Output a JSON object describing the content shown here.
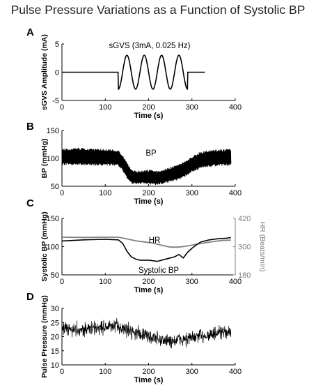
{
  "figure_title": "Pulse Pressure Variations as a Function of Systolic BP",
  "chart_data": [
    {
      "panel": "A",
      "type": "line",
      "title": "",
      "annotation": "sGVS (3mA, 0.025 Hz)",
      "xlabel": "Time (s)",
      "ylabel": "sGVS Amplitude (mA)",
      "xlim": [
        0,
        400
      ],
      "ylim": [
        -5,
        5
      ],
      "xticks": [
        "0",
        "100",
        "200",
        "300",
        "400"
      ],
      "yticks": [
        "-5",
        "0",
        "5"
      ],
      "series": [
        {
          "color": "#000000",
          "x": [
            0,
            130,
            130,
            140,
            150,
            160,
            170,
            180,
            190,
            200,
            210,
            220,
            230,
            240,
            250,
            260,
            270,
            280,
            290,
            290,
            330
          ],
          "values": [
            0,
            0,
            -3,
            -2.1,
            0,
            2.1,
            3,
            2.1,
            0,
            -2.1,
            -3,
            -2.1,
            0,
            2.1,
            3,
            2.1,
            0,
            -2.1,
            -3,
            0,
            0
          ]
        }
      ]
    },
    {
      "panel": "B",
      "type": "area",
      "title": "",
      "annotation": "BP",
      "xlabel": "Time (s)",
      "ylabel": "BP (mmHg)",
      "xlim": [
        0,
        400
      ],
      "ylim": [
        50,
        150
      ],
      "xticks": [
        "0",
        "100",
        "200",
        "300",
        "400"
      ],
      "yticks": [
        "50",
        "100",
        "150"
      ],
      "series": [
        {
          "name": "BP",
          "color": "#000000",
          "x": [
            0,
            40,
            80,
            120,
            130,
            140,
            150,
            160,
            170,
            180,
            200,
            220,
            240,
            260,
            280,
            300,
            320,
            340,
            360,
            380,
            390
          ],
          "upper": [
            115,
            117,
            116,
            114,
            113,
            105,
            90,
            80,
            76,
            76,
            78,
            76,
            80,
            86,
            92,
            102,
            110,
            113,
            114,
            115,
            116
          ],
          "lower": [
            90,
            90,
            89,
            89,
            88,
            80,
            66,
            57,
            55,
            56,
            55,
            54,
            58,
            61,
            67,
            77,
            84,
            87,
            88,
            89,
            89
          ]
        }
      ]
    },
    {
      "panel": "C",
      "type": "line",
      "title": "",
      "xlabel": "Time (s)",
      "ylabel": "Systolic BP (mmHg)",
      "y2label": "HR (Beats/min)",
      "xlim": [
        0,
        400
      ],
      "ylim": [
        50,
        150
      ],
      "y2lim": [
        180,
        420
      ],
      "xticks": [
        "0",
        "100",
        "200",
        "300",
        "400"
      ],
      "yticks": [
        "50",
        "100",
        "150"
      ],
      "y2ticks": [
        "180",
        "300",
        "420"
      ],
      "series": [
        {
          "name": "HR",
          "axis": "right",
          "color": "#808080",
          "x": [
            0,
            50,
            100,
            130,
            150,
            170,
            190,
            210,
            230,
            250,
            270,
            290,
            310,
            330,
            350,
            370,
            390
          ],
          "values": [
            340,
            339,
            340,
            340,
            333,
            325,
            320,
            315,
            306,
            298,
            298,
            303,
            310,
            316,
            322,
            326,
            328
          ]
        },
        {
          "name": "Systolic BP",
          "axis": "left",
          "color": "#000000",
          "x": [
            0,
            50,
            100,
            130,
            140,
            150,
            160,
            170,
            180,
            200,
            220,
            240,
            260,
            270,
            280,
            290,
            300,
            310,
            320,
            340,
            360,
            380,
            390
          ],
          "values": [
            110,
            112,
            113,
            112,
            106,
            92,
            82,
            78,
            76,
            76,
            74,
            78,
            82,
            86,
            80,
            90,
            97,
            103,
            108,
            112,
            114,
            115,
            116
          ]
        }
      ]
    },
    {
      "panel": "D",
      "type": "line",
      "title": "",
      "xlabel": "Time (s)",
      "ylabel": "Pulse Pressure (mmHg)",
      "xlim": [
        0,
        400
      ],
      "ylim": [
        10,
        30
      ],
      "xticks": [
        "0",
        "100",
        "200",
        "300",
        "400"
      ],
      "yticks": [
        "10",
        "15",
        "20",
        "25",
        "30"
      ],
      "series": [
        {
          "color": "#000000",
          "noise": 1.8,
          "x": [
            0,
            50,
            100,
            130,
            160,
            200,
            240,
            260,
            280,
            300,
            330,
            360,
            390
          ],
          "values": [
            22.5,
            22.5,
            23.5,
            23.5,
            22,
            20,
            18.5,
            18.5,
            19,
            19.5,
            20.5,
            21,
            22
          ]
        }
      ]
    }
  ]
}
